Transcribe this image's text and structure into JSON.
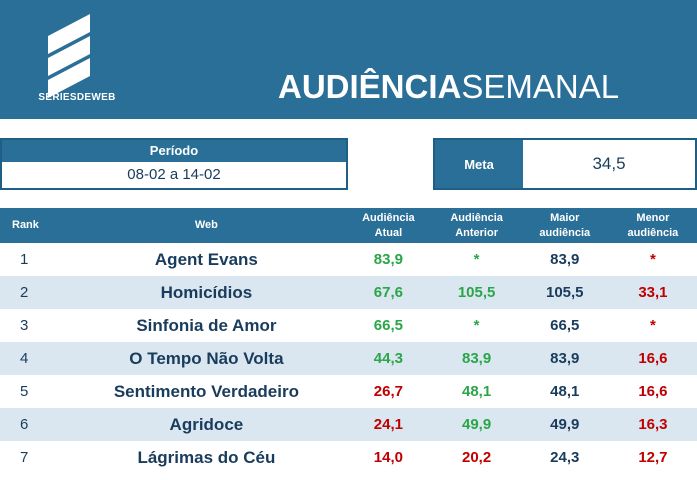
{
  "brand": {
    "logo_text": "SÉRIESDEWEB"
  },
  "title": {
    "bold": "AUDIÊNCIA",
    "light": "SEMANAL"
  },
  "period": {
    "label": "Período",
    "value": "08-02 a 14-02"
  },
  "meta": {
    "label": "Meta",
    "value": "34,5"
  },
  "columns": {
    "rank": "Rank",
    "web": "Web",
    "atual_1": "Audiência",
    "atual_2": "Atual",
    "anterior_1": "Audiência",
    "anterior_2": "Anterior",
    "maior_1": "Maior",
    "maior_2": "audiência",
    "menor_1": "Menor",
    "menor_2": "audiência"
  },
  "colors": {
    "banner": "#2a6f97",
    "green": "#2aa648",
    "red": "#c00000",
    "dark": "#1a3c5c",
    "row_alt": "#dbe7f0"
  },
  "rows": [
    {
      "rank": "1",
      "web": "Agent Evans",
      "atual": "83,9",
      "atual_color": "green",
      "anterior": "*",
      "anterior_color": "green",
      "maior": "83,9",
      "menor": "*",
      "menor_color": "red"
    },
    {
      "rank": "2",
      "web": "Homicídios",
      "atual": "67,6",
      "atual_color": "green",
      "anterior": "105,5",
      "anterior_color": "green",
      "maior": "105,5",
      "menor": "33,1",
      "menor_color": "red"
    },
    {
      "rank": "3",
      "web": "Sinfonia de Amor",
      "atual": "66,5",
      "atual_color": "green",
      "anterior": "*",
      "anterior_color": "green",
      "maior": "66,5",
      "menor": "*",
      "menor_color": "red"
    },
    {
      "rank": "4",
      "web": "O Tempo Não Volta",
      "atual": "44,3",
      "atual_color": "green",
      "anterior": "83,9",
      "anterior_color": "green",
      "maior": "83,9",
      "menor": "16,6",
      "menor_color": "red"
    },
    {
      "rank": "5",
      "web": "Sentimento Verdadeiro",
      "atual": "26,7",
      "atual_color": "red",
      "anterior": "48,1",
      "anterior_color": "green",
      "maior": "48,1",
      "menor": "16,6",
      "menor_color": "red"
    },
    {
      "rank": "6",
      "web": "Agridoce",
      "atual": "24,1",
      "atual_color": "red",
      "anterior": "49,9",
      "anterior_color": "green",
      "maior": "49,9",
      "menor": "16,3",
      "menor_color": "red"
    },
    {
      "rank": "7",
      "web": "Lágrimas do Céu",
      "atual": "14,0",
      "atual_color": "red",
      "anterior": "20,2",
      "anterior_color": "red",
      "maior": "24,3",
      "menor": "12,7",
      "menor_color": "red"
    }
  ]
}
